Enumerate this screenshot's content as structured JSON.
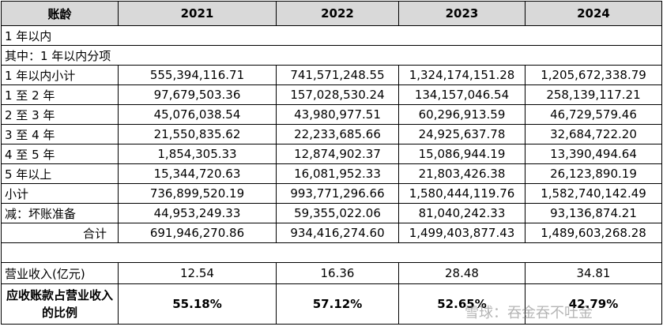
{
  "table": {
    "header": [
      "账龄",
      "2021",
      "2022",
      "2023",
      "2024"
    ],
    "section_rows": [
      "1 年以内",
      "其中：1 年以内分项"
    ],
    "rows": [
      [
        "1 年以内小计",
        "555,394,116.71",
        "741,571,248.55",
        "1,324,174,151.28",
        "1,205,672,338.79"
      ],
      [
        "1 至 2 年",
        "97,679,503.36",
        "157,028,530.24",
        "134,157,046.54",
        "258,139,117.21"
      ],
      [
        "2 至 3 年",
        "45,076,038.54",
        "43,980,977.51",
        "60,296,913.59",
        "46,729,579.46"
      ],
      [
        "3 至 4 年",
        "21,550,835.62",
        "22,233,685.66",
        "24,925,637.78",
        "32,684,722.20"
      ],
      [
        "4 至 5 年",
        "1,854,305.33",
        "12,874,902.37",
        "15,086,944.19",
        "13,390,494.64"
      ],
      [
        "5 年以上",
        "15,344,720.63",
        "16,081,952.33",
        "21,803,426.38",
        "26,123,890.19"
      ],
      [
        "小计",
        "736,899,520.19",
        "993,771,296.66",
        "1,580,444,119.76",
        "1,582,740,142.49"
      ],
      [
        "减：坏账准备",
        "44,953,249.33",
        "59,355,022.06",
        "81,040,242.33",
        "93,136,874.21"
      ],
      [
        "合计",
        "691,946,270.86",
        "934,416,274.60",
        "1,499,403,877.43",
        "1,489,603,268.28"
      ]
    ],
    "revenue_row": [
      "营业收入(亿元)",
      "12.54",
      "16.36",
      "28.48",
      "34.81"
    ],
    "ratio_row": [
      "应收账款占营业收入的比例",
      "55.18%",
      "57.12%",
      "52.65%",
      "42.79%"
    ]
  },
  "watermark": "雪球：吞金吞不吐金"
}
